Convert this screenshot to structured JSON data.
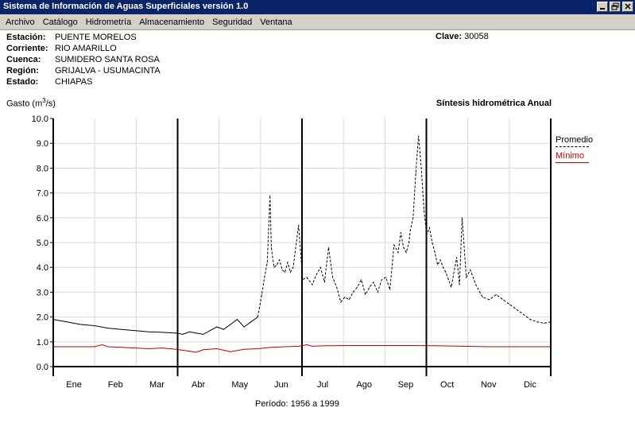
{
  "window": {
    "title": "Sistema de Información de Aguas Superficiales  versión 1.0"
  },
  "menu": [
    "Archivo",
    "Catálogo",
    "Hidrometría",
    "Almacenamiento",
    "Seguridad",
    "Ventana"
  ],
  "station": {
    "fields": [
      {
        "label": "Estación:",
        "value": "PUENTE MORELOS"
      },
      {
        "label": "Corriente:",
        "value": "RIO AMARILLO"
      },
      {
        "label": "Cuenca:",
        "value": "SUMIDERO SANTA ROSA"
      },
      {
        "label": "Región:",
        "value": "GRIJALVA - USUMACINTA"
      },
      {
        "label": "Estado:",
        "value": "CHIAPAS"
      }
    ],
    "clave_label": "Clave:",
    "clave_value": "30058"
  },
  "chart_header": {
    "ylabel_prefix": "Gasto (m",
    "ylabel_sup": "3",
    "ylabel_suffix": "/s)",
    "subtitle": "Síntesis hidrométrica   Anual"
  },
  "periodo": "Período:  1956 a 1999",
  "chart_data": {
    "type": "line",
    "ylim": [
      0,
      10
    ],
    "yticks": [
      "0.0",
      "1.0",
      "2.0",
      "3.0",
      "4.0",
      "5.0",
      "6.0",
      "7.0",
      "8.0",
      "9.0",
      "10.0"
    ],
    "months": [
      "Ene",
      "Feb",
      "Mar",
      "Abr",
      "May",
      "Jun",
      "Jul",
      "Ago",
      "Sep",
      "Oct",
      "Nov",
      "Dic"
    ],
    "grid": true,
    "legend_position": "right",
    "series": [
      {
        "name": "Promedio",
        "color": "#000000",
        "x_day": [
          0,
          10,
          20,
          30,
          40,
          50,
          60,
          70,
          80,
          90,
          95,
          100,
          105,
          110,
          115,
          120,
          125,
          130,
          135,
          140,
          145,
          150,
          153,
          155,
          157,
          159,
          160,
          162,
          164,
          166,
          168,
          170,
          172,
          174,
          176,
          180,
          183,
          186,
          190,
          193,
          196,
          199,
          202,
          205,
          208,
          211,
          214,
          217,
          220,
          223,
          226,
          229,
          232,
          235,
          238,
          241,
          244,
          247,
          250,
          253,
          255,
          257,
          259,
          261,
          262,
          264,
          266,
          268,
          270,
          272,
          274,
          276,
          278,
          280,
          282,
          284,
          286,
          288,
          290,
          292,
          294,
          296,
          298,
          300,
          303,
          306,
          310,
          315,
          320,
          325,
          330,
          335,
          340,
          345,
          350,
          355,
          360,
          365
        ],
        "values": [
          1.9,
          1.8,
          1.7,
          1.65,
          1.55,
          1.5,
          1.45,
          1.4,
          1.38,
          1.35,
          1.3,
          1.4,
          1.35,
          1.3,
          1.45,
          1.6,
          1.5,
          1.7,
          1.9,
          1.6,
          1.8,
          2.0,
          2.9,
          3.6,
          4.2,
          6.9,
          4.8,
          4.0,
          4.1,
          4.3,
          3.9,
          3.8,
          4.2,
          3.8,
          4.0,
          5.7,
          3.5,
          3.6,
          3.3,
          3.7,
          4.0,
          3.4,
          4.8,
          3.6,
          3.2,
          2.6,
          2.8,
          2.7,
          3.0,
          3.2,
          3.5,
          2.9,
          3.2,
          3.4,
          3.0,
          3.5,
          3.6,
          3.1,
          4.9,
          4.6,
          5.4,
          4.8,
          4.6,
          5.0,
          5.5,
          6.0,
          7.8,
          9.3,
          8.0,
          6.3,
          5.3,
          5.6,
          5.0,
          4.6,
          4.1,
          4.3,
          4.0,
          3.8,
          3.5,
          3.2,
          3.8,
          4.4,
          3.3,
          6.0,
          3.6,
          3.9,
          3.3,
          2.8,
          2.7,
          2.9,
          2.7,
          2.5,
          2.3,
          2.1,
          1.9,
          1.8,
          1.75,
          1.8
        ]
      },
      {
        "name": "Mínimo",
        "color": "#c00000",
        "x_day": [
          0,
          10,
          20,
          30,
          36,
          40,
          50,
          60,
          70,
          80,
          90,
          95,
          100,
          105,
          110,
          120,
          130,
          140,
          150,
          160,
          170,
          180,
          186,
          190,
          200,
          220,
          240,
          260,
          280,
          300,
          320,
          340,
          355,
          365
        ],
        "values": [
          0.8,
          0.8,
          0.8,
          0.8,
          0.88,
          0.8,
          0.78,
          0.75,
          0.72,
          0.75,
          0.7,
          0.66,
          0.62,
          0.58,
          0.68,
          0.72,
          0.6,
          0.7,
          0.72,
          0.78,
          0.8,
          0.82,
          0.88,
          0.82,
          0.84,
          0.85,
          0.85,
          0.85,
          0.84,
          0.82,
          0.8,
          0.8,
          0.8,
          0.8
        ]
      }
    ]
  }
}
